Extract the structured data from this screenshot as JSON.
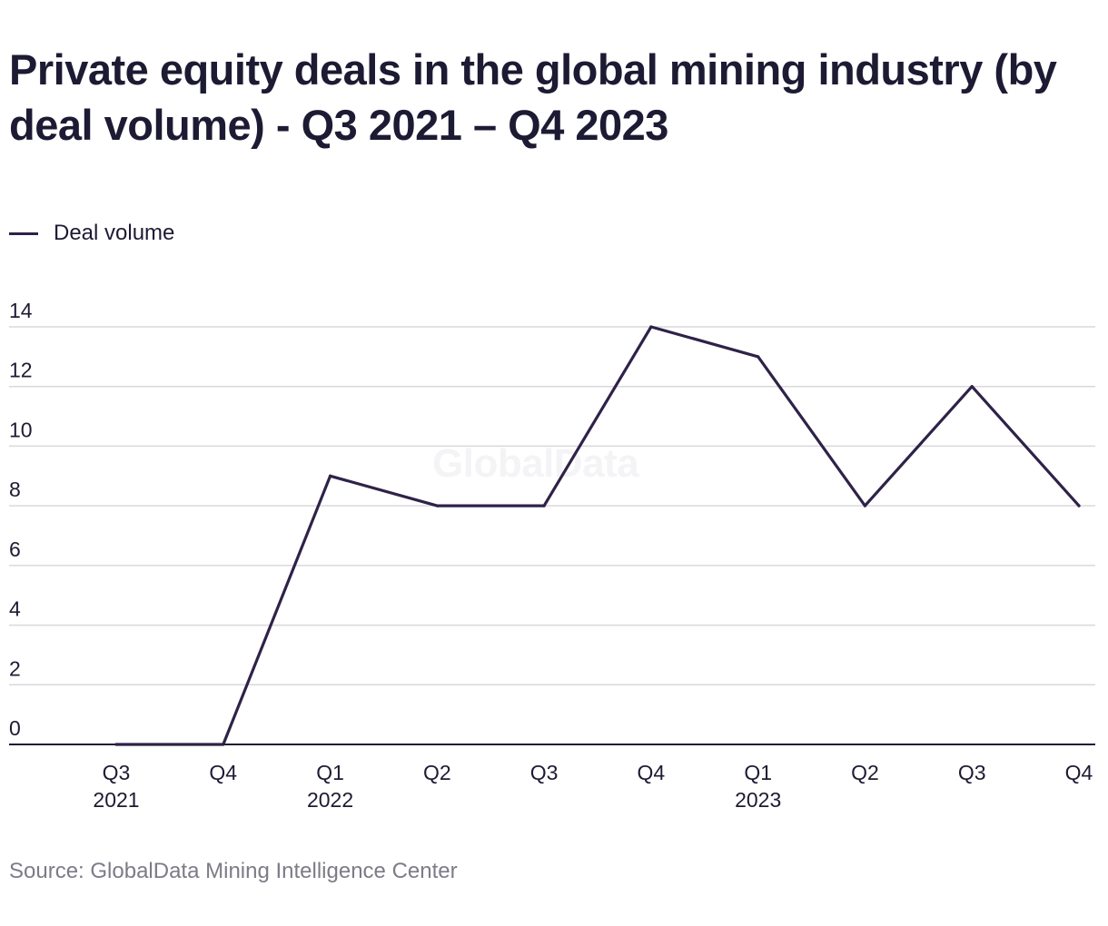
{
  "chart_data": {
    "type": "line",
    "title": "Private equity deals in the global mining industry (by deal volume) - Q3 2021 – Q4 2023",
    "x": [
      "Q3",
      "Q4",
      "Q1",
      "Q2",
      "Q3",
      "Q4",
      "Q1",
      "Q2",
      "Q3",
      "Q4"
    ],
    "x_year_labels": [
      "2021",
      "",
      "2022",
      "",
      "",
      "",
      "2023",
      "",
      "",
      ""
    ],
    "series": [
      {
        "name": "Deal volume",
        "values": [
          0,
          0,
          9,
          8,
          8,
          14,
          13,
          8,
          12,
          8
        ],
        "color": "#2f2248"
      }
    ],
    "yticks": [
      0,
      2,
      4,
      6,
      8,
      10,
      12,
      14
    ],
    "ylim": [
      0,
      14
    ],
    "grid": true,
    "legend_position": "top-left",
    "xlabel": "",
    "ylabel": "",
    "source": "Source: GlobalData Mining Intelligence Center",
    "watermark": "GlobalData"
  }
}
